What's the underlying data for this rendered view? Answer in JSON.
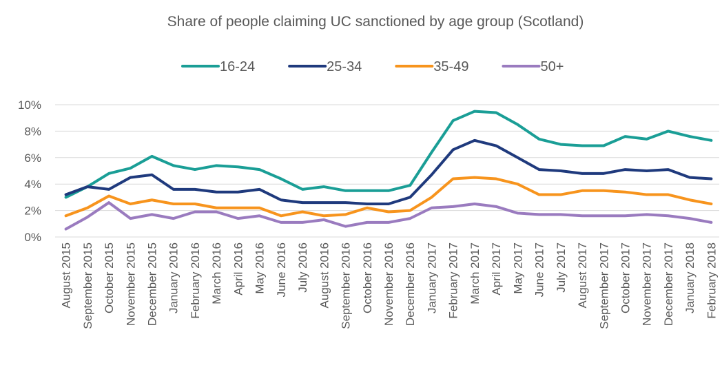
{
  "chart_data": {
    "type": "line",
    "title": "Share of people claiming UC sanctioned by age group (Scotland)",
    "categories": [
      "August 2015",
      "September 2015",
      "October 2015",
      "November 2015",
      "December 2015",
      "January 2016",
      "February 2016",
      "March 2016",
      "April 2016",
      "May 2016",
      "June 2016",
      "July 2016",
      "August 2016",
      "September 2016",
      "October 2016",
      "November 2016",
      "December 2016",
      "January 2017",
      "February 2017",
      "March 2017",
      "April 2017",
      "May 2017",
      "June 2017",
      "July 2017",
      "August 2017",
      "September 2017",
      "October 2017",
      "November 2017",
      "December 2017",
      "January 2018",
      "February 2018"
    ],
    "series": [
      {
        "name": "16-24",
        "color": "#1a9e96",
        "values": [
          3.0,
          3.8,
          4.8,
          5.2,
          6.1,
          5.4,
          5.1,
          5.4,
          5.3,
          5.1,
          4.4,
          3.6,
          3.8,
          3.5,
          3.5,
          3.5,
          3.9,
          6.4,
          8.8,
          9.5,
          9.4,
          8.5,
          7.4,
          7.0,
          6.9,
          6.9,
          7.6,
          7.4,
          8.0,
          7.6,
          7.3
        ]
      },
      {
        "name": "25-34",
        "color": "#1f3a7d",
        "values": [
          3.2,
          3.8,
          3.6,
          4.5,
          4.7,
          3.6,
          3.6,
          3.4,
          3.4,
          3.6,
          2.8,
          2.6,
          2.6,
          2.6,
          2.5,
          2.5,
          3.0,
          4.7,
          6.6,
          7.3,
          6.9,
          6.0,
          5.1,
          5.0,
          4.8,
          4.8,
          5.1,
          5.0,
          5.1,
          4.5,
          4.4
        ]
      },
      {
        "name": "35-49",
        "color": "#f7941d",
        "values": [
          1.6,
          2.2,
          3.1,
          2.5,
          2.8,
          2.5,
          2.5,
          2.2,
          2.2,
          2.2,
          1.6,
          1.9,
          1.6,
          1.7,
          2.2,
          1.9,
          2.0,
          3.0,
          4.4,
          4.5,
          4.4,
          4.0,
          3.2,
          3.2,
          3.5,
          3.5,
          3.4,
          3.2,
          3.2,
          2.8,
          2.5
        ]
      },
      {
        "name": "50+",
        "color": "#9a7bbf",
        "values": [
          0.6,
          1.5,
          2.6,
          1.4,
          1.7,
          1.4,
          1.9,
          1.9,
          1.4,
          1.6,
          1.1,
          1.1,
          1.3,
          0.8,
          1.1,
          1.1,
          1.4,
          2.2,
          2.3,
          2.5,
          2.3,
          1.8,
          1.7,
          1.7,
          1.6,
          1.6,
          1.6,
          1.7,
          1.6,
          1.4,
          1.1
        ]
      }
    ],
    "ylim": [
      0,
      10
    ],
    "yticks": [
      {
        "value": 0,
        "label": "0%"
      },
      {
        "value": 2,
        "label": "2%"
      },
      {
        "value": 4,
        "label": "4%"
      },
      {
        "value": 6,
        "label": "6%"
      },
      {
        "value": 8,
        "label": "8%"
      },
      {
        "value": 10,
        "label": "10%"
      }
    ],
    "grid": true,
    "legend": "top"
  }
}
